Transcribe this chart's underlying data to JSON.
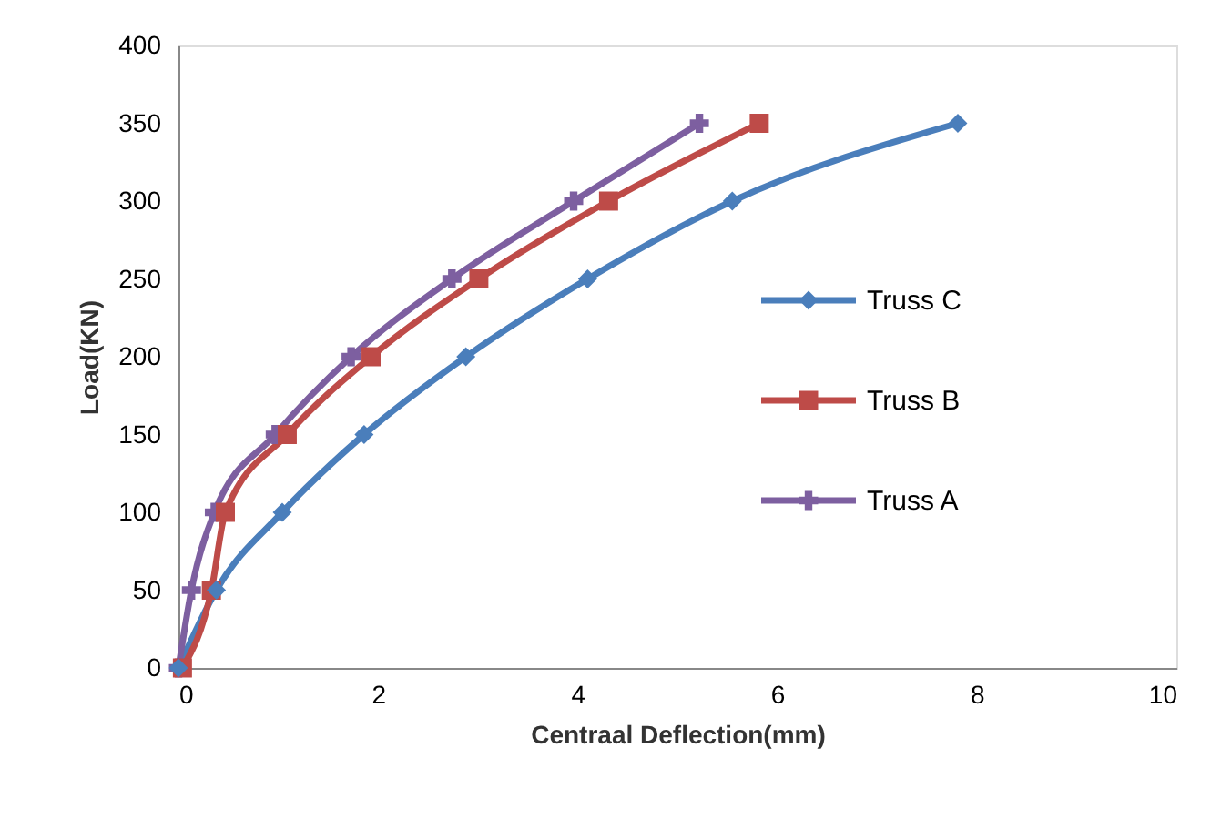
{
  "chart_data": {
    "type": "line",
    "xlabel": "Centraal Deflection(mm)",
    "ylabel": "Load(KN)",
    "xlim": [
      0,
      10
    ],
    "xticks": [
      0,
      2,
      4,
      6,
      8,
      10
    ],
    "ylim": [
      0,
      400
    ],
    "yticks": [
      0,
      50,
      100,
      150,
      200,
      250,
      300,
      350,
      400
    ],
    "grid": false,
    "legend": "right",
    "line_style": "solid",
    "series": [
      {
        "name": "Truss C",
        "color": "#4a7ebb",
        "marker": "diamond",
        "x": [
          0,
          0.38,
          1.04,
          1.86,
          2.88,
          4.1,
          5.55,
          7.81
        ],
        "values": [
          0,
          50,
          100,
          150,
          200,
          250,
          300,
          350
        ]
      },
      {
        "name": "Truss B",
        "color": "#be4b48",
        "marker": "square",
        "x": [
          0.04,
          0.33,
          0.47,
          1.09,
          1.93,
          3.01,
          4.31,
          5.82
        ],
        "values": [
          0,
          50,
          100,
          150,
          200,
          250,
          300,
          350
        ]
      },
      {
        "name": "Truss A",
        "color": "#7d5fa0",
        "marker": "cross",
        "x": [
          0,
          0.13,
          0.36,
          0.97,
          1.73,
          2.74,
          3.96,
          5.22
        ],
        "values": [
          0,
          50,
          100,
          150,
          200,
          250,
          300,
          350
        ]
      }
    ]
  }
}
